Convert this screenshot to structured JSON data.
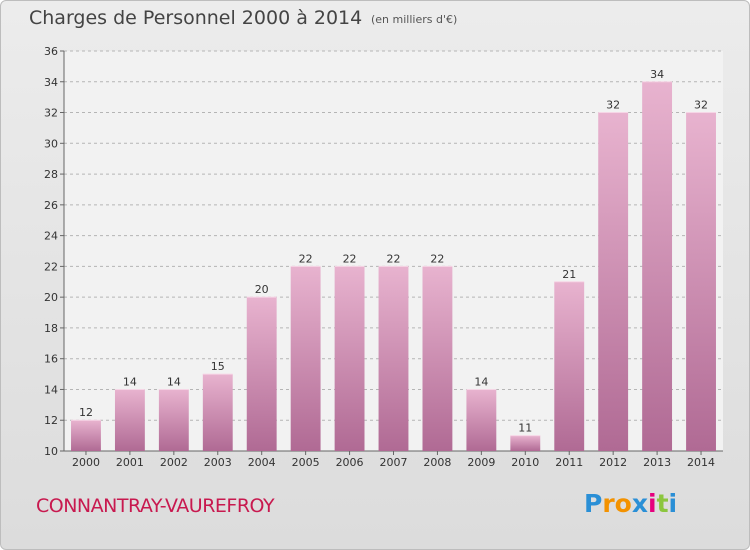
{
  "chart_data": {
    "type": "bar",
    "title": "Charges de Personnel 2000 à 2014",
    "subtitle": "(en milliers d'€)",
    "categories": [
      "2000",
      "2001",
      "2002",
      "2003",
      "2004",
      "2005",
      "2006",
      "2007",
      "2008",
      "2009",
      "2010",
      "2011",
      "2012",
      "2013",
      "2014"
    ],
    "values": [
      12,
      14,
      14,
      15,
      20,
      22,
      22,
      22,
      22,
      14,
      11,
      21,
      32,
      34,
      32
    ],
    "ylim": [
      10,
      36
    ],
    "yticks": [
      10,
      12,
      14,
      16,
      18,
      20,
      22,
      24,
      26,
      28,
      30,
      32,
      34,
      36
    ],
    "grid": true,
    "bar_color": "#d98fb5",
    "location": "CONNANTRAY-VAUREFROY",
    "logo": {
      "letters": [
        "P",
        "r",
        "o",
        "x",
        "i",
        "t",
        "i"
      ],
      "colors": [
        "#2a8fd6",
        "#f39200",
        "#f39200",
        "#2a8fd6",
        "#e6007e",
        "#8cc63f",
        "#2a8fd6"
      ]
    }
  }
}
